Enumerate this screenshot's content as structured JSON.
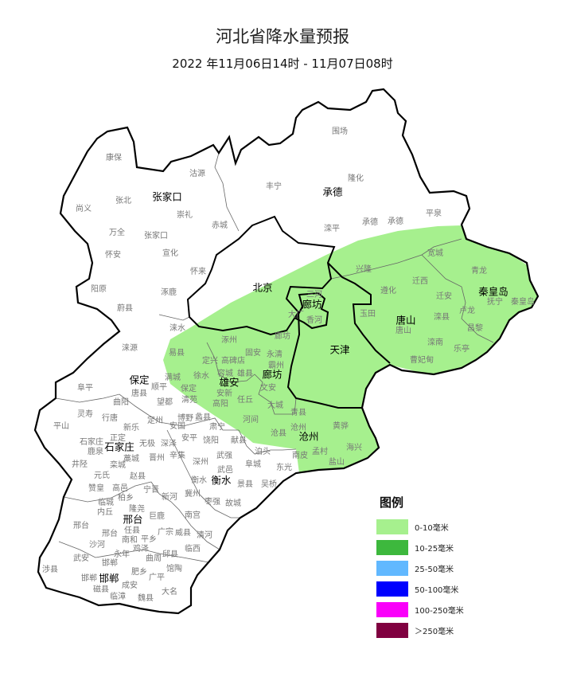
{
  "title": "河北省降水量预报",
  "subtitle": "2022 年11月06日14时 - 11月07日08时",
  "map": {
    "fill_color_area": "#a6f08e",
    "region": "河北省",
    "cities": [
      "张家口",
      "承德",
      "北京",
      "廊坊",
      "唐山",
      "秦皇岛",
      "天津",
      "保定",
      "雄安",
      "廊坊",
      "石家庄",
      "沧州",
      "衡水",
      "邢台",
      "邯郸"
    ],
    "counties": [
      "康保",
      "沽源",
      "尚义",
      "张北",
      "崇礼",
      "万全",
      "张家口",
      "赤城",
      "怀安",
      "宣化",
      "怀来",
      "阳原",
      "涿鹿",
      "蔚县",
      "丰宁",
      "围场",
      "隆化",
      "滦平",
      "承德",
      "承德",
      "平泉",
      "宽城",
      "兴隆",
      "青龙",
      "迁西",
      "遵化",
      "迁安",
      "抚宁",
      "秦皇岛",
      "三河",
      "大厂",
      "香河",
      "玉田",
      "卢龙",
      "滦县",
      "唐山",
      "昌黎",
      "滦南",
      "乐亭",
      "曹妃甸",
      "涞水",
      "涞源",
      "涿州",
      "廊坊",
      "易县",
      "固安",
      "永清",
      "定兴",
      "高碑店",
      "霸州",
      "满城",
      "徐水",
      "容城",
      "雄县",
      "阜平",
      "顺平",
      "唐县",
      "保定",
      "安新",
      "文安",
      "曲阳",
      "望都",
      "清苑",
      "任丘",
      "高阳",
      "大城",
      "灵寿",
      "行唐",
      "定州",
      "博野",
      "蠡县",
      "河间",
      "青县",
      "平山",
      "新乐",
      "安国",
      "肃宁",
      "沧州",
      "正定",
      "安平",
      "饶阳",
      "献县",
      "沧县",
      "石家庄",
      "无极",
      "深泽",
      "鹿泉",
      "藁城",
      "晋州",
      "辛集",
      "武强",
      "泊头",
      "南皮",
      "井陉",
      "栾城",
      "深州",
      "阜城",
      "东光",
      "元氏",
      "武邑",
      "赵县",
      "衡水",
      "景县",
      "吴桥",
      "黄骅",
      "孟村",
      "海兴",
      "盐山",
      "赞皇",
      "高邑",
      "柏乡",
      "宁晋",
      "新河",
      "冀州",
      "枣强",
      "故城",
      "临城",
      "内丘",
      "隆尧",
      "巨鹿",
      "南宫",
      "邢台",
      "邢台",
      "任县",
      "广宗",
      "威县",
      "清河",
      "南和",
      "平乡",
      "沙河",
      "鸡泽",
      "临西",
      "武安",
      "永年",
      "曲周",
      "邱县",
      "邯郸",
      "涉县",
      "馆陶",
      "肥乡",
      "广平",
      "邯郸",
      "磁县",
      "成安",
      "大名",
      "临漳",
      "魏县"
    ]
  },
  "legend": {
    "title": "图例",
    "items": [
      {
        "label": "0-10毫米",
        "color": "#a6f08e"
      },
      {
        "label": "10-25毫米",
        "color": "#3db83d"
      },
      {
        "label": "25-50毫米",
        "color": "#61b8ff"
      },
      {
        "label": "50-100毫米",
        "color": "#0000fe"
      },
      {
        "label": "100-250毫米",
        "color": "#fa00fa"
      },
      {
        "label": "＞250毫米",
        "color": "#800040"
      }
    ]
  }
}
